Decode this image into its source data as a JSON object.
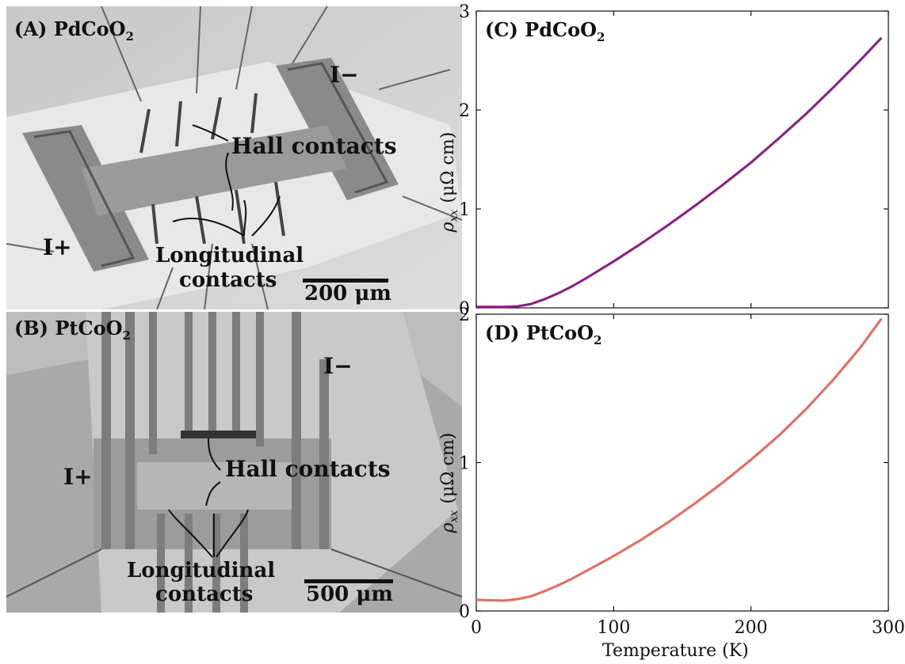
{
  "panelA": {
    "title": "(A) PdCoO",
    "title_sub": "2",
    "label_i_minus": "I−",
    "label_i_plus": "I+",
    "hall": "Hall contacts",
    "longitudinal_1": "Longitudinal",
    "longitudinal_2": "contacts",
    "scale": "200 μm"
  },
  "panelB": {
    "title": "(B) PtCoO",
    "title_sub": "2",
    "label_i_minus": "I−",
    "label_i_plus": "I+",
    "hall": "Hall contacts",
    "longitudinal_1": "Longitudinal",
    "longitudinal_2": "contacts",
    "scale": "500 μm"
  },
  "chart_data": [
    {
      "type": "line",
      "title": "(C) PdCoO",
      "title_sub": "2",
      "ylabel": "ρ",
      "ylabel_sub": "xx",
      "ylabel_unit": "(μΩ cm)",
      "xlim": [
        0,
        300
      ],
      "ylim": [
        0,
        3
      ],
      "yticks": [
        0,
        1,
        2,
        3
      ],
      "xticks": [
        0,
        100,
        200,
        300
      ],
      "color": "#8e1a8a",
      "series": [
        {
          "x": [
            0,
            10,
            20,
            30,
            40,
            50,
            60,
            70,
            80,
            100,
            120,
            140,
            160,
            180,
            200,
            220,
            240,
            260,
            280,
            295
          ],
          "values": [
            0.01,
            0.01,
            0.01,
            0.015,
            0.04,
            0.09,
            0.15,
            0.22,
            0.3,
            0.47,
            0.65,
            0.84,
            1.04,
            1.25,
            1.47,
            1.71,
            1.96,
            2.23,
            2.51,
            2.73
          ]
        }
      ]
    },
    {
      "type": "line",
      "title": "(D) PtCoO",
      "title_sub": "2",
      "ylabel": "ρ",
      "ylabel_sub": "xx",
      "ylabel_unit": "(μΩ cm)",
      "xlabel": "Temperature (K)",
      "xlim": [
        0,
        300
      ],
      "ylim": [
        0,
        2
      ],
      "yticks": [
        0,
        1,
        2
      ],
      "xticks": [
        0,
        100,
        200,
        300
      ],
      "color": "#f2665a",
      "series": [
        {
          "x": [
            0,
            10,
            20,
            30,
            40,
            50,
            60,
            70,
            80,
            100,
            120,
            140,
            160,
            180,
            200,
            220,
            240,
            260,
            280,
            295
          ],
          "values": [
            0.075,
            0.072,
            0.07,
            0.08,
            0.1,
            0.135,
            0.175,
            0.22,
            0.27,
            0.37,
            0.48,
            0.6,
            0.73,
            0.87,
            1.02,
            1.18,
            1.36,
            1.56,
            1.78,
            1.97
          ]
        }
      ]
    }
  ]
}
